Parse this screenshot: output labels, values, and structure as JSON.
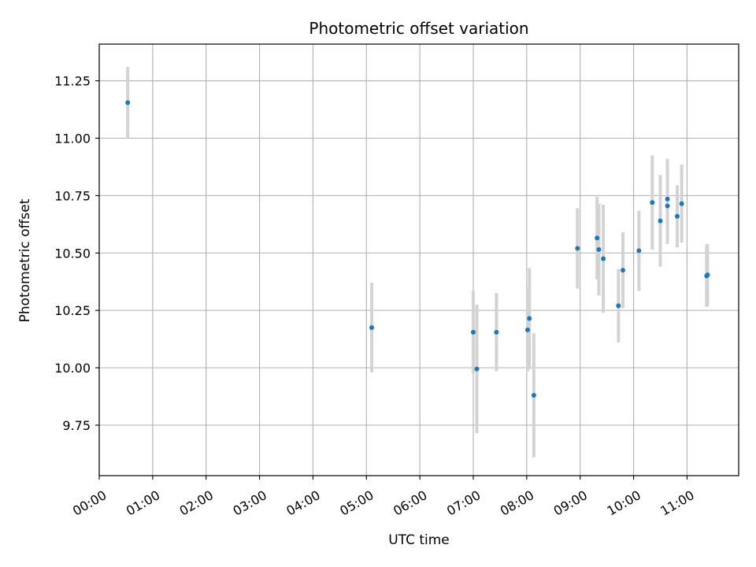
{
  "chart_data": {
    "type": "scatter",
    "title": "Photometric offset variation",
    "xlabel": "UTC time",
    "ylabel": "Photometric offset",
    "xlim": [
      "00:00",
      "11:58"
    ],
    "ylim": [
      9.53,
      11.41
    ],
    "grid": true,
    "x_ticks": [
      "00:00",
      "01:00",
      "02:00",
      "03:00",
      "04:00",
      "05:00",
      "06:00",
      "07:00",
      "08:00",
      "09:00",
      "10:00",
      "11:00"
    ],
    "y_ticks": [
      "9.75",
      "10.00",
      "10.25",
      "10.50",
      "10.75",
      "11.00",
      "11.25"
    ],
    "series": [
      {
        "x": [
          "00:32",
          "05:06",
          "07:00",
          "07:04",
          "07:26",
          "08:01",
          "08:03",
          "08:08",
          "08:57",
          "09:19",
          "09:21",
          "09:26",
          "09:43",
          "09:48",
          "10:06",
          "10:21",
          "10:30",
          "10:38",
          "10:38",
          "10:49",
          "10:54",
          "11:22",
          "11:23"
        ],
        "y": [
          11.155,
          10.175,
          10.155,
          9.995,
          10.155,
          10.165,
          10.215,
          9.88,
          10.52,
          10.565,
          10.515,
          10.475,
          10.27,
          10.425,
          10.51,
          10.72,
          10.64,
          10.735,
          10.705,
          10.66,
          10.715,
          10.4,
          10.405
        ],
        "error": [
          0.155,
          0.195,
          0.18,
          0.28,
          0.17,
          0.18,
          0.22,
          0.27,
          0.175,
          0.18,
          0.2,
          0.235,
          0.16,
          0.165,
          0.175,
          0.205,
          0.2,
          0.175,
          0.165,
          0.135,
          0.17,
          0.135,
          0.135
        ]
      }
    ],
    "colors": {
      "point": "#1f77b4",
      "errorbar": "#d3d3d3",
      "grid": "#b0b0b0",
      "axes": "#000000"
    }
  }
}
